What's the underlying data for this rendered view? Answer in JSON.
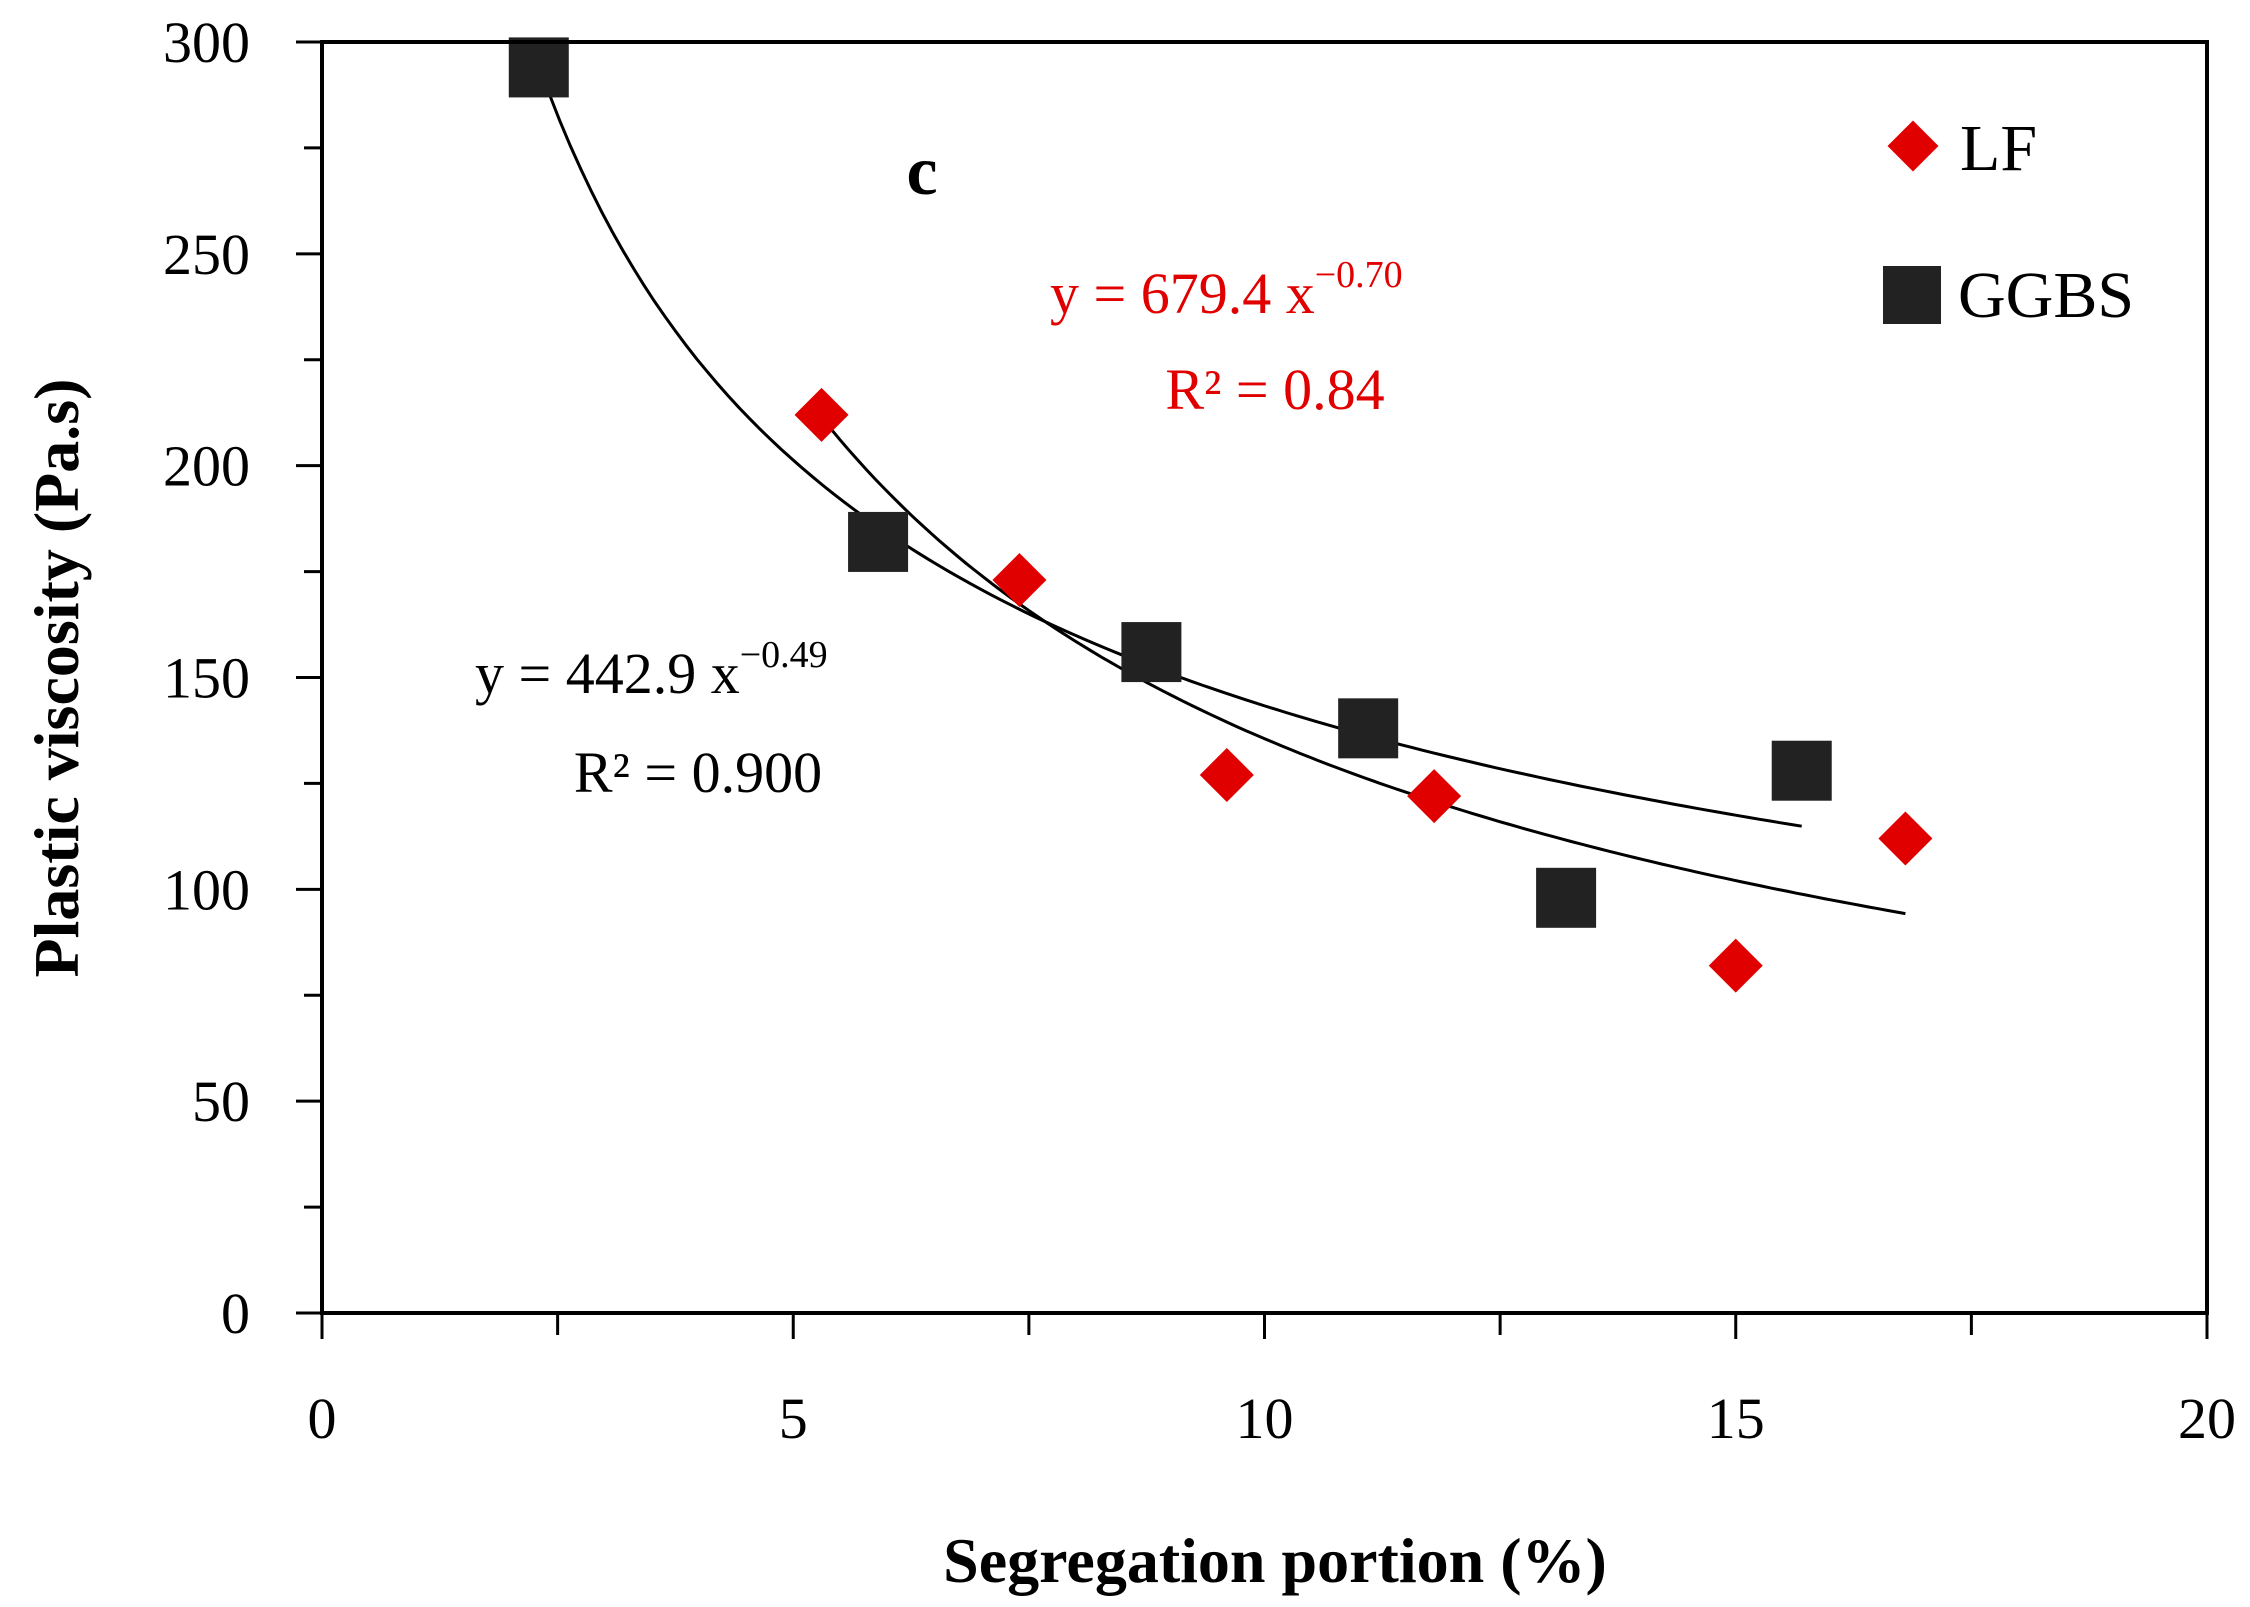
{
  "chart_data": {
    "type": "scatter",
    "panel_label": "c",
    "xlabel": "Segregation portion (%)",
    "ylabel": "Plastic viscosity (Pa.s)",
    "xlim": [
      0,
      20
    ],
    "ylim": [
      0,
      300
    ],
    "x_ticks": [
      "0",
      "5",
      "10",
      "15",
      "20"
    ],
    "y_ticks": [
      "0",
      "50",
      "100",
      "150",
      "200",
      "250",
      "300"
    ],
    "x_minor_step": 2.5,
    "y_minor_step": 25,
    "grid": false,
    "legend_position": "top-right",
    "series": [
      {
        "name": "LF",
        "marker": "diamond",
        "color": "#e00000",
        "points": [
          {
            "x": 5.3,
            "y": 212
          },
          {
            "x": 7.4,
            "y": 173
          },
          {
            "x": 9.6,
            "y": 127
          },
          {
            "x": 11.8,
            "y": 122
          },
          {
            "x": 15.0,
            "y": 82
          },
          {
            "x": 16.8,
            "y": 112
          }
        ],
        "trendline": {
          "type": "power",
          "a": 679.4,
          "b": -0.7,
          "x_range": [
            5.3,
            16.8
          ],
          "equation_prefix": "y = 679.4 x",
          "equation_exponent": "−0.70",
          "r2_text": "R² = 0.84",
          "text_color": "#e00000",
          "line_color": "#000000"
        }
      },
      {
        "name": "GGBS",
        "marker": "square",
        "color": "#222222",
        "points": [
          {
            "x": 2.3,
            "y": 294
          },
          {
            "x": 5.9,
            "y": 182
          },
          {
            "x": 8.8,
            "y": 156
          },
          {
            "x": 11.1,
            "y": 138
          },
          {
            "x": 13.2,
            "y": 98
          },
          {
            "x": 15.7,
            "y": 128
          }
        ],
        "trendline": {
          "type": "power",
          "a": 442.9,
          "b": -0.49,
          "x_range": [
            2.3,
            15.7
          ],
          "equation_prefix": "y = 442.9 x",
          "equation_exponent": "−0.49",
          "r2_text": "R² = 0.900",
          "text_color": "#000000",
          "line_color": "#000000"
        }
      }
    ]
  }
}
